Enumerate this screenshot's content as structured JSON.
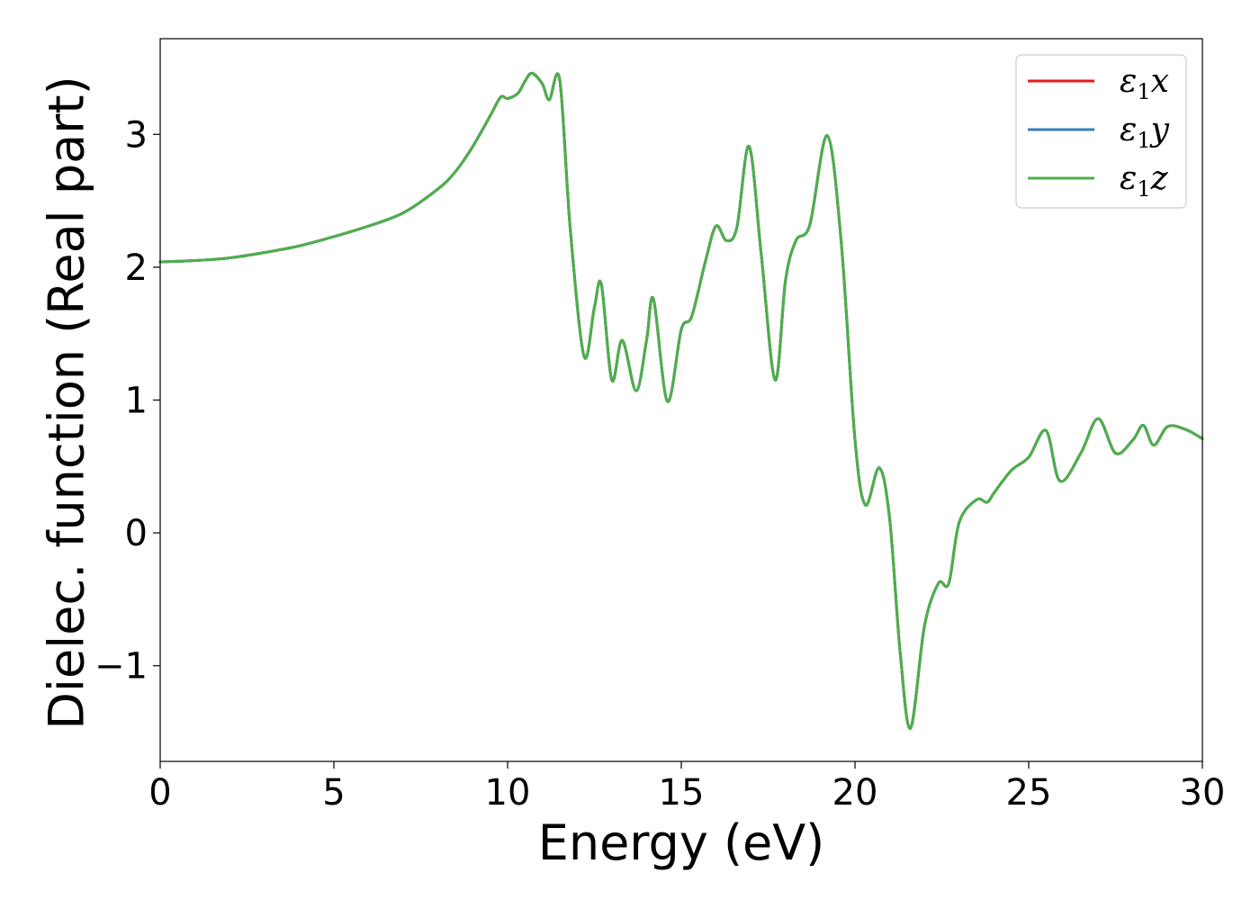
{
  "chart_data": {
    "type": "line",
    "xlabel": "Energy (eV)",
    "ylabel": "Dielec. function (Real part)",
    "xlim": [
      0,
      30
    ],
    "ylim": [
      -1.72,
      3.72
    ],
    "xticks": [
      0,
      5,
      10,
      15,
      20,
      25,
      30
    ],
    "yticks": [
      -1,
      0,
      1,
      2,
      3
    ],
    "xtick_labels": [
      "0",
      "5",
      "10",
      "15",
      "20",
      "25",
      "30"
    ],
    "ytick_labels": [
      "−1",
      "0",
      "1",
      "2",
      "3"
    ],
    "grid": false,
    "legend_position": "top-right",
    "series": [
      {
        "name": "ε1x",
        "legend": {
          "base": "ε",
          "sub": "1",
          "comp": "x"
        },
        "color": "#e41a1c",
        "x": [
          0,
          1,
          2,
          3,
          4,
          5,
          6,
          7,
          8,
          8.5,
          9,
          9.5,
          9.8,
          10,
          10.3,
          10.5,
          10.7,
          11,
          11.2,
          11.5,
          11.8,
          12.2,
          12.5,
          12.7,
          13,
          13.3,
          13.7,
          14,
          14.2,
          14.6,
          15,
          15.3,
          15.7,
          16,
          16.3,
          16.6,
          16.95,
          17.3,
          17.7,
          18,
          18.3,
          18.7,
          19.2,
          19.6,
          20,
          20.3,
          20.7,
          21,
          21.3,
          21.6,
          22,
          22.4,
          22.7,
          23,
          23.5,
          23.8,
          24,
          24.5,
          25,
          25.5,
          25.9,
          26.5,
          27,
          27.5,
          28,
          28.3,
          28.6,
          29,
          29.5,
          30
        ],
        "y": [
          2.04,
          2.05,
          2.07,
          2.11,
          2.16,
          2.23,
          2.31,
          2.41,
          2.59,
          2.72,
          2.91,
          3.14,
          3.28,
          3.27,
          3.31,
          3.4,
          3.46,
          3.38,
          3.26,
          3.41,
          2.3,
          1.33,
          1.7,
          1.87,
          1.15,
          1.45,
          1.07,
          1.45,
          1.76,
          0.99,
          1.53,
          1.63,
          2.05,
          2.31,
          2.2,
          2.3,
          2.91,
          2.1,
          1.15,
          1.9,
          2.2,
          2.32,
          2.99,
          2.2,
          0.7,
          0.21,
          0.49,
          0.1,
          -0.9,
          -1.47,
          -0.7,
          -0.38,
          -0.38,
          0.08,
          0.25,
          0.23,
          0.3,
          0.47,
          0.57,
          0.77,
          0.39,
          0.6,
          0.86,
          0.6,
          0.7,
          0.81,
          0.66,
          0.8,
          0.78,
          0.71
        ]
      },
      {
        "name": "ε1y",
        "legend": {
          "base": "ε",
          "sub": "1",
          "comp": "y"
        },
        "color": "#377eb8",
        "x": [
          0,
          1,
          2,
          3,
          4,
          5,
          6,
          7,
          8,
          8.5,
          9,
          9.5,
          9.8,
          10,
          10.3,
          10.5,
          10.7,
          11,
          11.2,
          11.5,
          11.8,
          12.2,
          12.5,
          12.7,
          13,
          13.3,
          13.7,
          14,
          14.2,
          14.6,
          15,
          15.3,
          15.7,
          16,
          16.3,
          16.6,
          16.95,
          17.3,
          17.7,
          18,
          18.3,
          18.7,
          19.2,
          19.6,
          20,
          20.3,
          20.7,
          21,
          21.3,
          21.6,
          22,
          22.4,
          22.7,
          23,
          23.5,
          23.8,
          24,
          24.5,
          25,
          25.5,
          25.9,
          26.5,
          27,
          27.5,
          28,
          28.3,
          28.6,
          29,
          29.5,
          30
        ],
        "y": [
          2.04,
          2.05,
          2.07,
          2.11,
          2.16,
          2.23,
          2.31,
          2.41,
          2.59,
          2.72,
          2.91,
          3.14,
          3.28,
          3.27,
          3.31,
          3.4,
          3.46,
          3.38,
          3.26,
          3.41,
          2.3,
          1.33,
          1.7,
          1.87,
          1.15,
          1.45,
          1.07,
          1.45,
          1.76,
          0.99,
          1.53,
          1.63,
          2.05,
          2.31,
          2.2,
          2.3,
          2.91,
          2.1,
          1.15,
          1.9,
          2.2,
          2.32,
          2.99,
          2.2,
          0.7,
          0.21,
          0.49,
          0.1,
          -0.9,
          -1.47,
          -0.7,
          -0.38,
          -0.38,
          0.08,
          0.25,
          0.23,
          0.3,
          0.47,
          0.57,
          0.77,
          0.39,
          0.6,
          0.86,
          0.6,
          0.7,
          0.81,
          0.66,
          0.8,
          0.78,
          0.71
        ]
      },
      {
        "name": "ε1z",
        "legend": {
          "base": "ε",
          "sub": "1",
          "comp": "z"
        },
        "color": "#4daf4a",
        "x": [
          0,
          1,
          2,
          3,
          4,
          5,
          6,
          7,
          8,
          8.5,
          9,
          9.5,
          9.8,
          10,
          10.3,
          10.5,
          10.7,
          11,
          11.2,
          11.5,
          11.8,
          12.2,
          12.5,
          12.7,
          13,
          13.3,
          13.7,
          14,
          14.2,
          14.6,
          15,
          15.3,
          15.7,
          16,
          16.3,
          16.6,
          16.95,
          17.3,
          17.7,
          18,
          18.3,
          18.7,
          19.2,
          19.6,
          20,
          20.3,
          20.7,
          21,
          21.3,
          21.6,
          22,
          22.4,
          22.7,
          23,
          23.5,
          23.8,
          24,
          24.5,
          25,
          25.5,
          25.9,
          26.5,
          27,
          27.5,
          28,
          28.3,
          28.6,
          29,
          29.5,
          30
        ],
        "y": [
          2.04,
          2.05,
          2.07,
          2.11,
          2.16,
          2.23,
          2.31,
          2.41,
          2.59,
          2.72,
          2.91,
          3.14,
          3.28,
          3.27,
          3.31,
          3.4,
          3.46,
          3.38,
          3.26,
          3.41,
          2.3,
          1.33,
          1.7,
          1.87,
          1.15,
          1.45,
          1.07,
          1.45,
          1.76,
          0.99,
          1.53,
          1.63,
          2.05,
          2.31,
          2.2,
          2.3,
          2.91,
          2.1,
          1.15,
          1.9,
          2.2,
          2.32,
          2.99,
          2.2,
          0.7,
          0.21,
          0.49,
          0.1,
          -0.9,
          -1.47,
          -0.7,
          -0.38,
          -0.38,
          0.08,
          0.25,
          0.23,
          0.3,
          0.47,
          0.57,
          0.77,
          0.39,
          0.6,
          0.86,
          0.6,
          0.7,
          0.81,
          0.66,
          0.8,
          0.78,
          0.71
        ]
      }
    ]
  }
}
